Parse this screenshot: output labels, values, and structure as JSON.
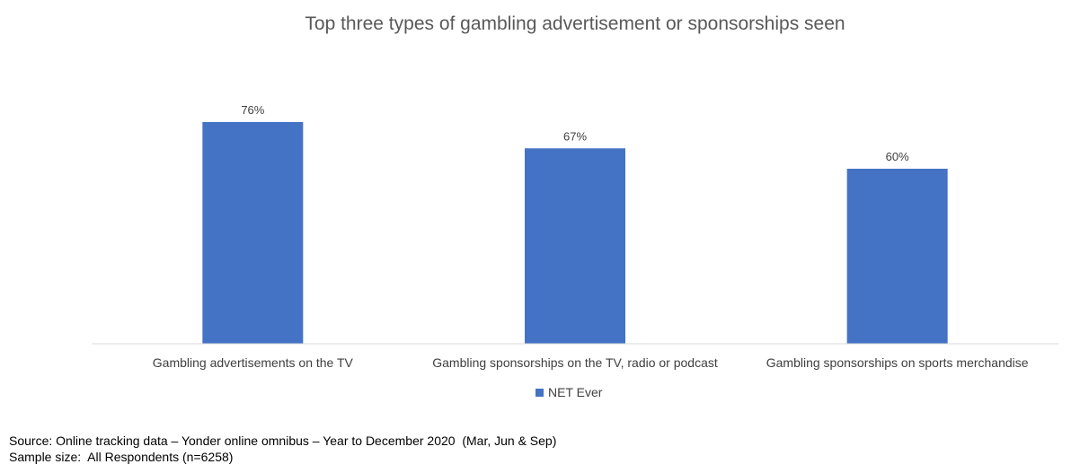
{
  "chart_data": {
    "type": "bar",
    "title": "Top three types of gambling advertisement or sponsorships seen",
    "categories": [
      "Gambling advertisements on the TV",
      "Gambling sponsorships on the TV, radio or podcast",
      "Gambling sponsorships on sports merchandise"
    ],
    "series": [
      {
        "name": "NET Ever",
        "values": [
          76,
          67,
          60
        ],
        "labels": [
          "76%",
          "67%",
          "60%"
        ],
        "color": "#4472C4"
      }
    ],
    "ylim": [
      0,
      80
    ],
    "grid": false,
    "legend_position": "bottom"
  },
  "footer": {
    "source": "Source: Online tracking data – Yonder online omnibus – Year to December 2020  (Mar, Jun & Sep)",
    "sample": "Sample size:  All Respondents (n=6258)"
  }
}
